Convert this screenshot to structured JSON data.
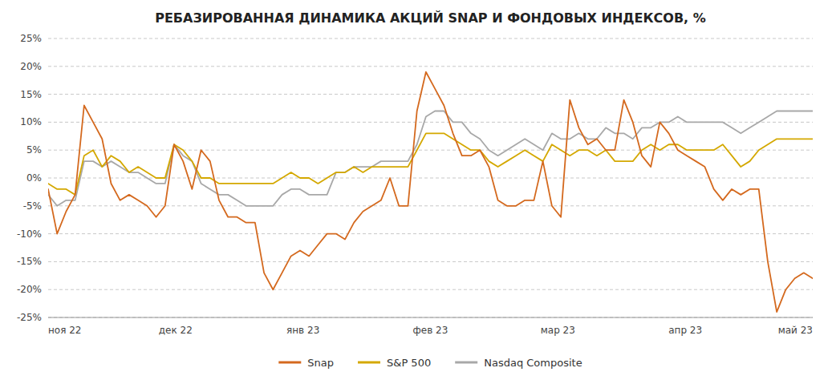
{
  "chart_data": {
    "type": "line",
    "title": "РЕБАЗИРОВАННАЯ ДИНАМИКА АКЦИЙ SNAP И ФОНДОВЫХ ИНДЕКСОВ, %",
    "x": [
      0,
      1,
      2,
      3,
      4,
      5,
      6,
      7,
      8,
      9,
      10,
      11,
      12,
      13,
      14,
      15,
      16,
      17,
      18,
      19,
      20,
      21,
      22,
      23,
      24,
      25,
      26,
      27,
      28,
      29,
      30,
      31,
      32,
      33,
      34,
      35,
      36,
      37,
      38,
      39,
      40,
      41,
      42,
      43,
      44,
      45,
      46,
      47,
      48,
      49,
      50,
      51,
      52,
      53,
      54,
      55,
      56,
      57,
      58,
      59,
      60,
      61,
      62,
      63,
      64,
      65,
      66,
      67,
      68,
      69,
      70,
      71,
      72,
      73,
      74,
      75,
      76,
      77,
      78,
      79,
      80,
      81,
      82,
      83,
      84,
      85
    ],
    "xlim": [
      0,
      85
    ],
    "xticks": [
      {
        "value": 0,
        "label": "ноя 22"
      },
      {
        "value": 14.166666666666666,
        "label": "дек 22"
      },
      {
        "value": 28.333333333333332,
        "label": "янв 23"
      },
      {
        "value": 42.5,
        "label": "фев 23"
      },
      {
        "value": 56.666666666666664,
        "label": "мар 23"
      },
      {
        "value": 70.83333333333333,
        "label": "апр 23"
      },
      {
        "value": 85,
        "label": "май 23"
      }
    ],
    "ylim": [
      -25,
      25
    ],
    "yticks": [
      {
        "value": -25,
        "label": "-25%"
      },
      {
        "value": -20,
        "label": "-20%"
      },
      {
        "value": -15,
        "label": "-15%"
      },
      {
        "value": -10,
        "label": "-10%"
      },
      {
        "value": -5,
        "label": "-5%"
      },
      {
        "value": 0,
        "label": "0%"
      },
      {
        "value": 5,
        "label": "5%"
      },
      {
        "value": 10,
        "label": "10%"
      },
      {
        "value": 15,
        "label": "15%"
      },
      {
        "value": 20,
        "label": "20%"
      },
      {
        "value": 25,
        "label": "25%"
      }
    ],
    "grid": true,
    "legend": "bottom",
    "series": [
      {
        "name": "Snap",
        "color": "#D4691E",
        "values": [
          -2,
          -10,
          -6,
          -3,
          13,
          10,
          7,
          -1,
          -4,
          -3,
          -4,
          -5,
          -7,
          -5,
          6,
          3,
          -2,
          5,
          3,
          -4,
          -7,
          -7,
          -8,
          -8,
          -17,
          -20,
          -17,
          -14,
          -13,
          -14,
          -12,
          -10,
          -10,
          -11,
          -8,
          -6,
          -5,
          -4,
          0,
          -5,
          -5,
          12,
          19,
          16,
          13,
          8,
          4,
          4,
          5,
          2,
          -4,
          -5,
          -5,
          -4,
          -4,
          3,
          -5,
          -7,
          14,
          9,
          6,
          7,
          5,
          5,
          14,
          10,
          4,
          2,
          10,
          8,
          5,
          4,
          3,
          2,
          -2,
          -4,
          -2,
          -3,
          -2,
          -2,
          -15,
          -24,
          -20,
          -18,
          -17,
          -18
        ]
      },
      {
        "name": "S&P 500",
        "color": "#D4A800",
        "values": [
          -1,
          -2,
          -2,
          -3,
          4,
          5,
          2,
          4,
          3,
          1,
          2,
          1,
          0,
          0,
          6,
          5,
          3,
          0,
          0,
          -1,
          -1,
          -1,
          -1,
          -1,
          -1,
          -1,
          0,
          1,
          0,
          0,
          -1,
          0,
          1,
          1,
          2,
          1,
          2,
          2,
          2,
          2,
          2,
          5,
          8,
          8,
          8,
          7,
          6,
          5,
          5,
          3,
          2,
          3,
          4,
          5,
          4,
          3,
          6,
          5,
          4,
          5,
          5,
          4,
          5,
          3,
          3,
          3,
          5,
          6,
          5,
          6,
          6,
          5,
          5,
          5,
          5,
          6,
          4,
          2,
          3,
          5,
          6,
          7,
          7,
          7,
          7,
          7
        ]
      },
      {
        "name": "Nasdaq Composite",
        "color": "#A8A8A8",
        "values": [
          -3,
          -5,
          -4,
          -4,
          3,
          3,
          2,
          3,
          2,
          1,
          1,
          0,
          -1,
          -1,
          6,
          4,
          3,
          -1,
          -2,
          -3,
          -3,
          -4,
          -5,
          -5,
          -5,
          -5,
          -3,
          -2,
          -2,
          -3,
          -3,
          -3,
          1,
          1,
          2,
          2,
          2,
          3,
          3,
          3,
          3,
          6,
          11,
          12,
          12,
          10,
          10,
          8,
          7,
          5,
          4,
          5,
          6,
          7,
          6,
          5,
          8,
          7,
          7,
          8,
          7,
          7,
          9,
          8,
          8,
          7,
          9,
          9,
          10,
          10,
          11,
          10,
          10,
          10,
          10,
          10,
          9,
          8,
          9,
          10,
          11,
          12,
          12,
          12,
          12,
          12
        ]
      }
    ]
  }
}
